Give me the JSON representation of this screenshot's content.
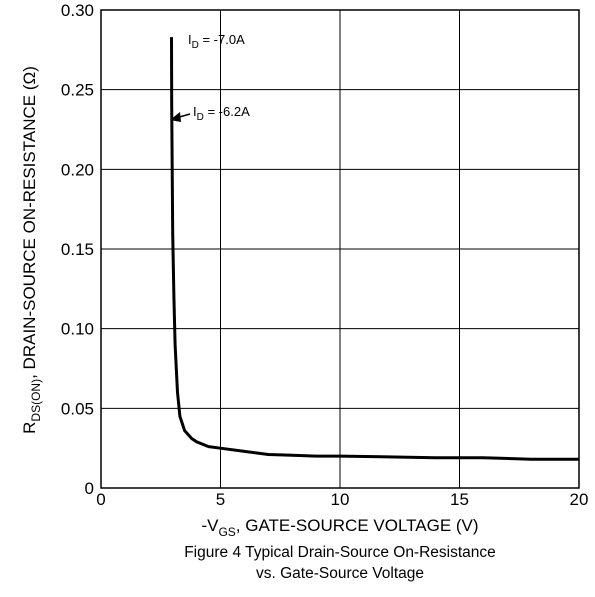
{
  "chart_data": {
    "type": "line",
    "title": "Figure 4 Typical Drain-Source On-Resistance",
    "subtitle": "vs. Gate-Source Voltage",
    "xlabel": {
      "prefix": "-V",
      "sub": "GS",
      "suffix": ", GATE-SOURCE VOLTAGE (V)"
    },
    "ylabel": {
      "prefix": "R",
      "sub": "DS(ON)",
      "suffix": ", DRAIN-SOURCE ON-RESISTANCE (Ω)"
    },
    "xlim": [
      0,
      20
    ],
    "ylim": [
      0,
      0.3
    ],
    "x_ticks": [
      0,
      5,
      10,
      15,
      20
    ],
    "x_tick_labels": [
      "0",
      "5",
      "10",
      "15",
      "20"
    ],
    "y_ticks": [
      0,
      0.05,
      0.1,
      0.15,
      0.2,
      0.25,
      0.3
    ],
    "y_tick_labels": [
      "0",
      "0.05",
      "0.10",
      "0.15",
      "0.20",
      "0.25",
      "0.30"
    ],
    "grid": true,
    "series": [
      {
        "x": [
          2.95,
          2.96,
          2.98,
          3.0,
          3.05,
          3.1,
          3.2,
          3.3,
          3.5,
          3.8,
          4.0,
          4.5,
          5.0,
          6.0,
          7.0,
          8.0,
          9.0,
          10.0,
          12.0,
          14.0,
          16.0,
          18.0,
          20.0
        ],
        "y": [
          0.283,
          0.24,
          0.2,
          0.16,
          0.12,
          0.09,
          0.06,
          0.045,
          0.036,
          0.031,
          0.029,
          0.026,
          0.025,
          0.023,
          0.021,
          0.0205,
          0.02,
          0.02,
          0.0195,
          0.019,
          0.019,
          0.018,
          0.018
        ]
      }
    ],
    "annotations": [
      {
        "prefix": "I",
        "sub": "D",
        "suffix": " = -7.0A"
      },
      {
        "prefix": "I",
        "sub": "D",
        "suffix": " = -6.2A"
      }
    ]
  }
}
